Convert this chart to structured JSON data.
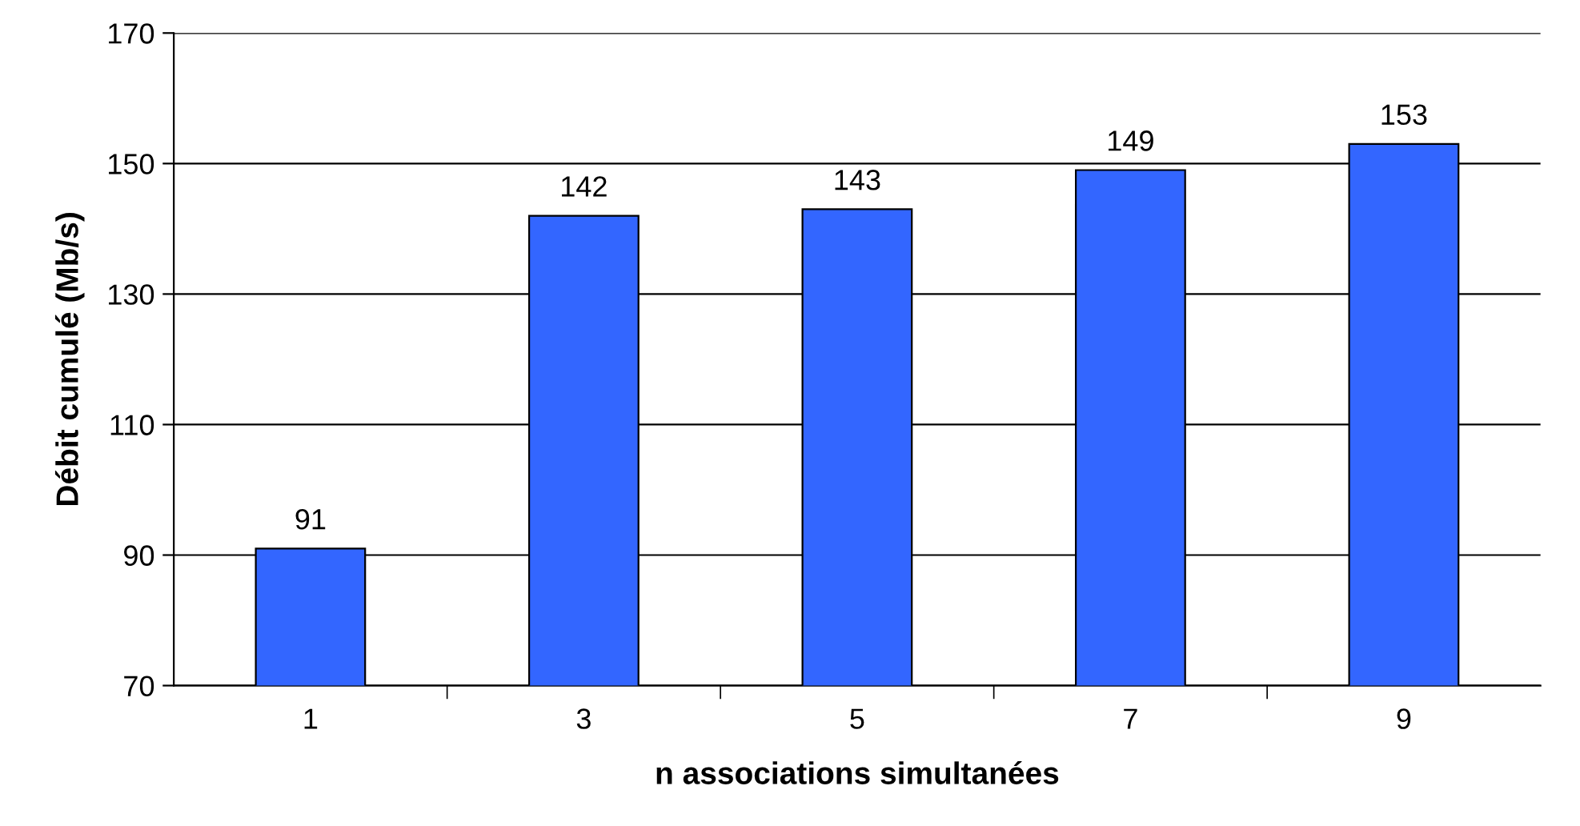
{
  "chart_data": {
    "type": "bar",
    "xlabel": "n associations simultanées",
    "ylabel": "Débit cumulé (Mb/s)",
    "categories": [
      "1",
      "3",
      "5",
      "7",
      "9"
    ],
    "values": [
      91,
      142,
      143,
      149,
      153
    ],
    "color": "#3366ff",
    "ylim": [
      70,
      170
    ],
    "yticks": [
      70,
      90,
      110,
      130,
      150,
      170
    ],
    "grid": "y",
    "data_labels": true
  }
}
